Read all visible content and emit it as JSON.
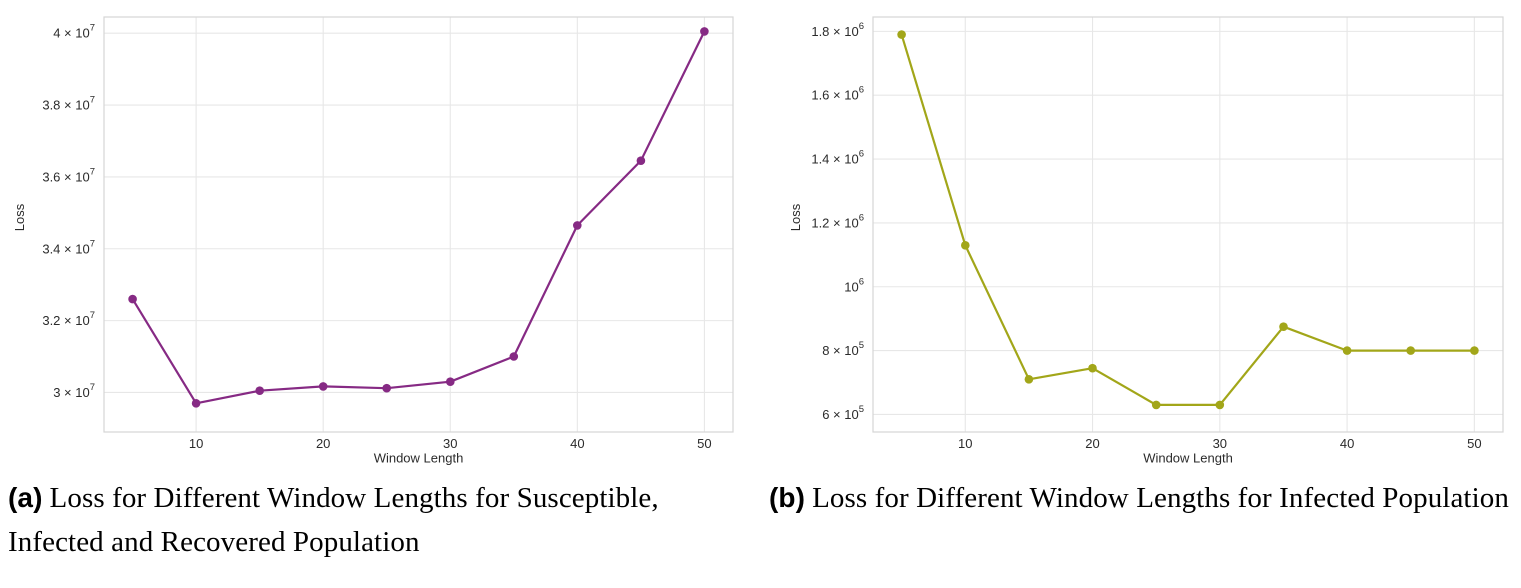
{
  "figure": {
    "panels": [
      {
        "caption_marker": "(a)",
        "caption_text": "Loss for Different Window Lengths for Susceptible, Infected and Recovered Population"
      },
      {
        "caption_marker": "(b)",
        "caption_text": "Loss for Different Window Lengths for Infected Population"
      }
    ]
  },
  "chart_data": [
    {
      "type": "line",
      "title": "",
      "xlabel": "Window Length",
      "ylabel": "Loss",
      "x": [
        5,
        10,
        15,
        20,
        25,
        30,
        35,
        40,
        45,
        50
      ],
      "y": [
        32600000,
        29700000,
        30050000,
        30170000,
        30120000,
        30300000,
        31000000,
        34650000,
        36450000,
        40050000
      ],
      "series_name": "Loss (Susceptible, Infected, Recovered)",
      "line_color": "#862a84",
      "xlim": [
        2.75,
        52.25
      ],
      "ylim": [
        28900000,
        40450000
      ],
      "xticks": [
        10,
        20,
        30,
        40,
        50
      ],
      "yticks": [
        {
          "value": 30000000,
          "label": "3 × 10",
          "sup": "7"
        },
        {
          "value": 32000000,
          "label": "3.2 × 10",
          "sup": "7"
        },
        {
          "value": 34000000,
          "label": "3.4 × 10",
          "sup": "7"
        },
        {
          "value": 36000000,
          "label": "3.6 × 10",
          "sup": "7"
        },
        {
          "value": 38000000,
          "label": "3.8 × 10",
          "sup": "7"
        },
        {
          "value": 40000000,
          "label": "4 × 10",
          "sup": "7"
        }
      ],
      "grid": true,
      "legend": "none"
    },
    {
      "type": "line",
      "title": "",
      "xlabel": "Window Length",
      "ylabel": "Loss",
      "x": [
        5,
        10,
        15,
        20,
        25,
        30,
        35,
        40,
        45,
        50
      ],
      "y": [
        1790000,
        1130000,
        710000,
        745000,
        630000,
        630000,
        875000,
        800000,
        800000,
        800000
      ],
      "series_name": "Loss (Infected)",
      "line_color": "#a2a619",
      "xlim": [
        2.75,
        52.25
      ],
      "ylim": [
        545000,
        1845000
      ],
      "xticks": [
        10,
        20,
        30,
        40,
        50
      ],
      "yticks": [
        {
          "value": 600000,
          "label": "6 × 10",
          "sup": "5"
        },
        {
          "value": 800000,
          "label": "8 × 10",
          "sup": "5"
        },
        {
          "value": 1000000,
          "label": "10",
          "sup": "6"
        },
        {
          "value": 1200000,
          "label": "1.2 × 10",
          "sup": "6"
        },
        {
          "value": 1400000,
          "label": "1.4 × 10",
          "sup": "6"
        },
        {
          "value": 1600000,
          "label": "1.6 × 10",
          "sup": "6"
        },
        {
          "value": 1800000,
          "label": "1.8 × 10",
          "sup": "6"
        }
      ],
      "grid": true,
      "legend": "none"
    }
  ]
}
